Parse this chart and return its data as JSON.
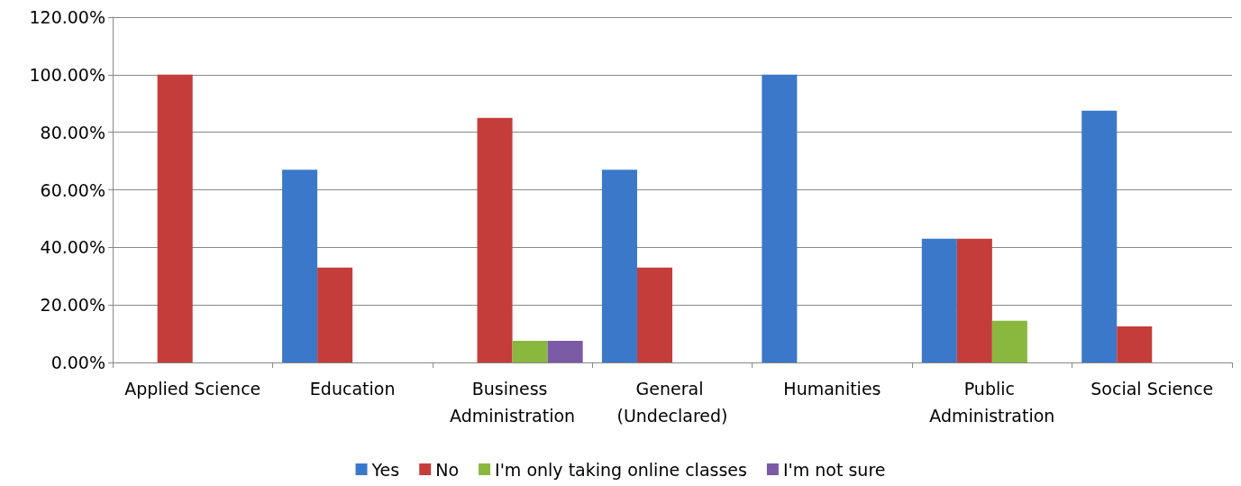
{
  "chart_data": {
    "type": "bar",
    "categories": [
      "Applied Science",
      "Education",
      "Business Administration",
      "General (Undeclared)",
      "Humanities",
      "Public Administration",
      "Social Science"
    ],
    "series": [
      {
        "name": "Yes",
        "color": "#3b78c9",
        "values": [
          0,
          67,
          0,
          67,
          100,
          43,
          87.5
        ]
      },
      {
        "name": "No",
        "color": "#c53d3a",
        "values": [
          100,
          33,
          85,
          33,
          0,
          43,
          12.5
        ]
      },
      {
        "name": "I'm only taking online classes",
        "color": "#8ab83f",
        "values": [
          0,
          0,
          7.5,
          0,
          0,
          14.5,
          0
        ]
      },
      {
        "name": "I'm not sure",
        "color": "#7b5aa6",
        "values": [
          0,
          0,
          7.5,
          0,
          0,
          0,
          0
        ]
      }
    ],
    "ylim": [
      0,
      120
    ],
    "yticks": [
      {
        "value": 0,
        "label": "0.00%"
      },
      {
        "value": 20,
        "label": "20.00%"
      },
      {
        "value": 40,
        "label": "40.00%"
      },
      {
        "value": 60,
        "label": "60.00%"
      },
      {
        "value": 80,
        "label": "80.00%"
      },
      {
        "value": 100,
        "label": "100.00%"
      },
      {
        "value": 120,
        "label": "120.00%"
      }
    ],
    "grid": "y",
    "legend": "bottom"
  }
}
